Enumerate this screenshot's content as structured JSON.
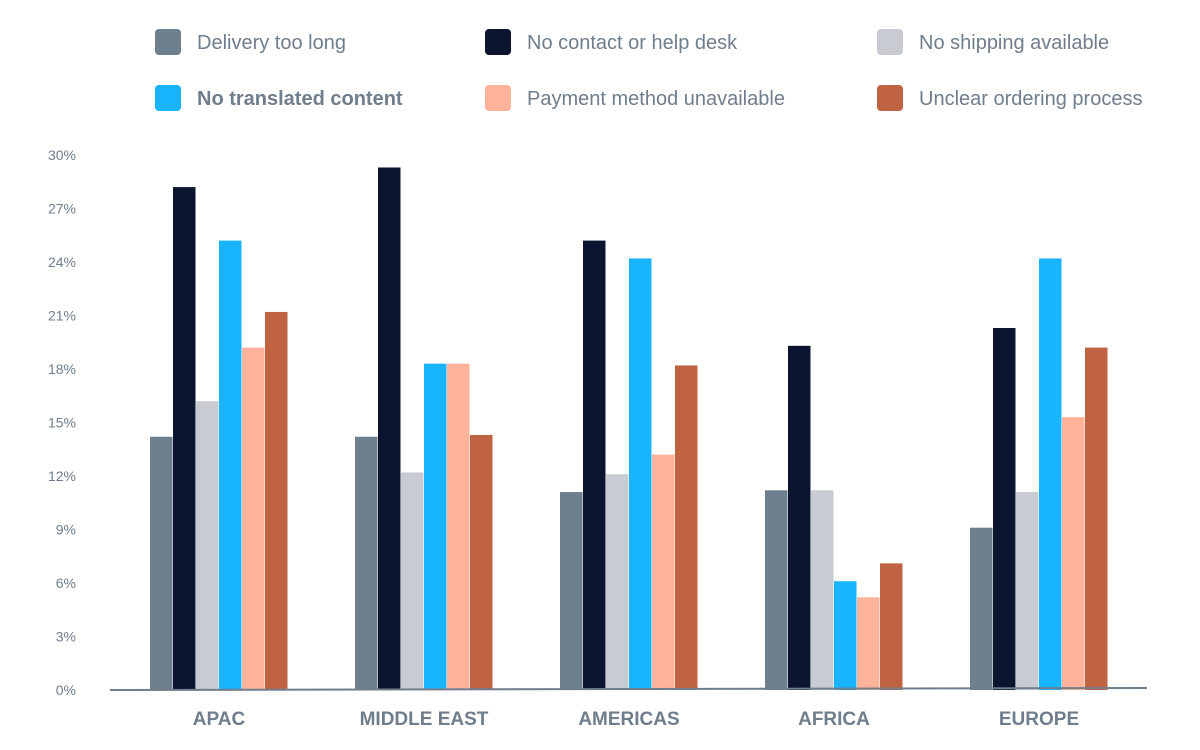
{
  "chart_data": {
    "type": "bar",
    "title": "",
    "xlabel": "",
    "ylabel": "",
    "ylim": [
      0,
      30
    ],
    "yticks": [
      "0%",
      "3%",
      "6%",
      "9%",
      "12%",
      "15%",
      "18%",
      "21%",
      "24%",
      "27%",
      "30%"
    ],
    "grid": false,
    "legend_position": "top",
    "categories": [
      "APAC",
      "MIDDLE EAST",
      "AMERICAS",
      "AFRICA",
      "EUROPE"
    ],
    "series": [
      {
        "name": "Delivery too long",
        "color": "#6e7f8d",
        "values": [
          14.2,
          14.2,
          11.1,
          11.2,
          9.1
        ]
      },
      {
        "name": "No contact or help desk",
        "color": "#0c1530",
        "values": [
          28.2,
          29.3,
          25.2,
          19.3,
          20.3
        ]
      },
      {
        "name": "No shipping available",
        "color": "#c8ccd2",
        "values": [
          16.2,
          12.2,
          12.1,
          11.2,
          11.1
        ]
      },
      {
        "name": "No translated content",
        "color": "#18b4fc",
        "values": [
          25.2,
          18.3,
          24.2,
          6.1,
          24.2
        ]
      },
      {
        "name": "Payment method unavailable",
        "color": "#feb39a",
        "values": [
          19.2,
          18.3,
          13.2,
          5.2,
          15.3
        ]
      },
      {
        "name": "Unclear ordering process",
        "color": "#c06342",
        "values": [
          21.2,
          14.3,
          18.2,
          7.1,
          19.2
        ]
      }
    ]
  }
}
